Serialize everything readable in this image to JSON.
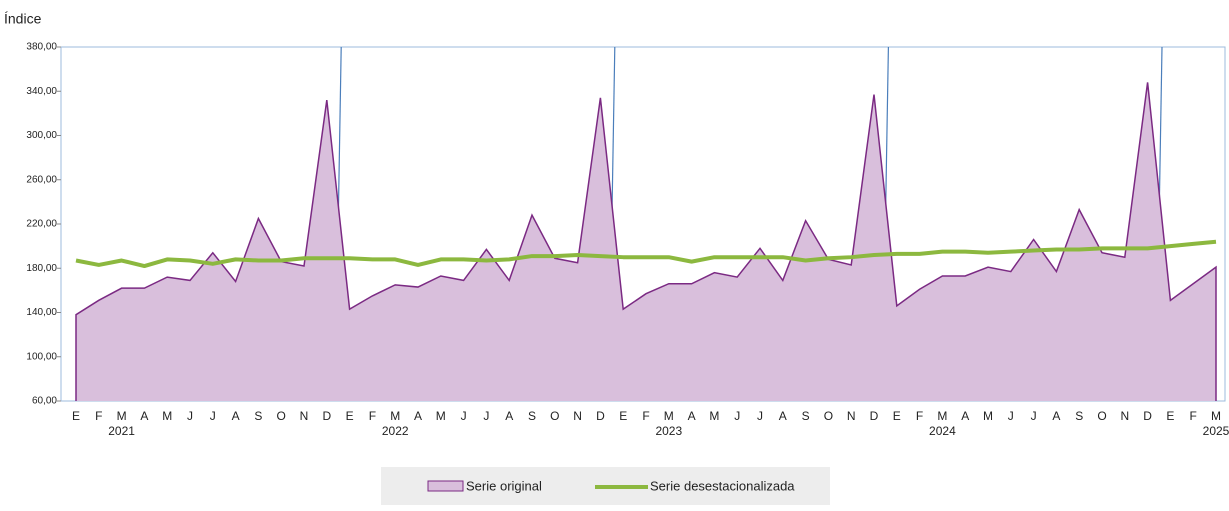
{
  "chart_data": {
    "type": "area-line",
    "y_label": "Índice",
    "categories": [
      "E",
      "F",
      "M",
      "A",
      "M",
      "J",
      "J",
      "A",
      "S",
      "O",
      "N",
      "D",
      "E",
      "F",
      "M",
      "A",
      "M",
      "J",
      "J",
      "A",
      "S",
      "O",
      "N",
      "D",
      "E",
      "F",
      "M",
      "A",
      "M",
      "J",
      "J",
      "A",
      "S",
      "O",
      "N",
      "D",
      "E",
      "F",
      "M",
      "A",
      "M",
      "J",
      "J",
      "A",
      "S",
      "O",
      "N",
      "D",
      "E",
      "F",
      "M"
    ],
    "years": [
      "2021",
      "2022",
      "2023",
      "2024",
      "2025"
    ],
    "series": [
      {
        "name": "Serie original",
        "color": "#7b2a83",
        "fill": "#d9bfdc",
        "values": [
          138,
          151,
          162,
          162,
          172,
          169,
          194,
          168,
          225,
          186,
          182,
          332,
          143,
          155,
          165,
          163,
          173,
          169,
          197,
          169,
          228,
          189,
          185,
          334,
          143,
          157,
          166,
          166,
          176,
          172,
          198,
          169,
          223,
          188,
          183,
          337,
          146,
          161,
          173,
          173,
          181,
          177,
          206,
          177,
          233,
          194,
          190,
          348,
          151,
          166,
          181
        ]
      },
      {
        "name": "Serie desestacionalizada",
        "color": "#8cb83f",
        "values": [
          187,
          183,
          187,
          182,
          188,
          187,
          184,
          188,
          187,
          187,
          189,
          189,
          189,
          188,
          188,
          183,
          188,
          188,
          187,
          188,
          191,
          191,
          192,
          191,
          190,
          190,
          190,
          186,
          190,
          190,
          190,
          190,
          187,
          189,
          190,
          192,
          193,
          193,
          195,
          195,
          194,
          195,
          196,
          197,
          197,
          198,
          198,
          198,
          200,
          202,
          204
        ]
      }
    ],
    "ylim": [
      60,
      380
    ],
    "yticks": [
      {
        "value": 60,
        "label": "60,00"
      },
      {
        "value": 100,
        "label": "100,00"
      },
      {
        "value": 140,
        "label": "140,00"
      },
      {
        "value": 180,
        "label": "180,00"
      },
      {
        "value": 220,
        "label": "220,00"
      },
      {
        "value": 260,
        "label": "260,00"
      },
      {
        "value": 300,
        "label": "300,00"
      },
      {
        "value": 340,
        "label": "340,00"
      },
      {
        "value": 380,
        "label": "380,00"
      }
    ]
  }
}
